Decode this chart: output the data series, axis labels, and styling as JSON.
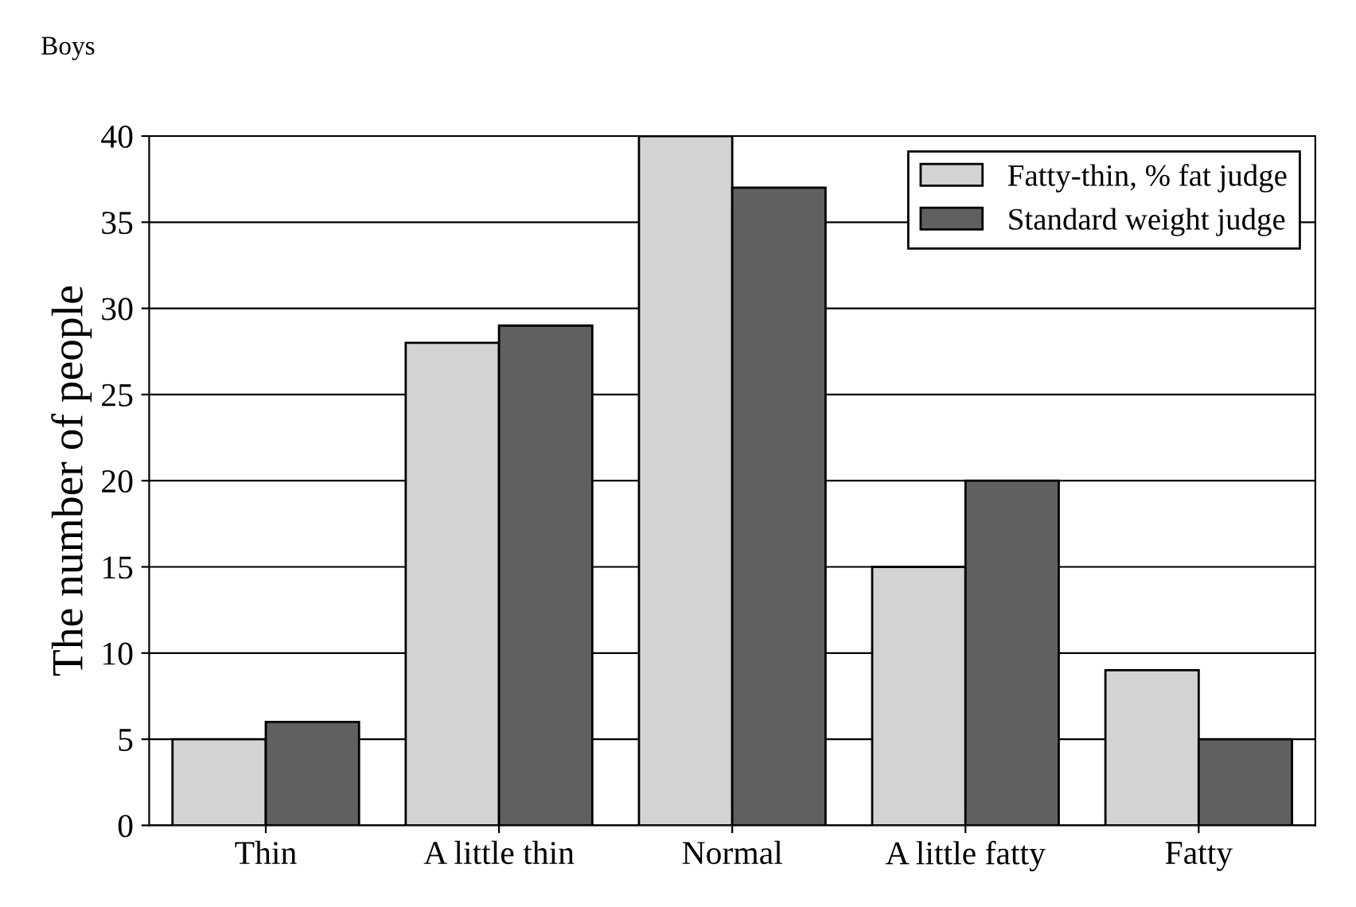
{
  "chart_data": {
    "type": "bar",
    "title": "Boys",
    "ylabel": "The number of people",
    "categories": [
      "Thin",
      "A little thin",
      "Normal",
      "A little fatty",
      "Fatty"
    ],
    "series": [
      {
        "name": "Fatty-thin, % fat judge",
        "color": "#d3d3d3",
        "values": [
          5,
          28,
          40,
          15,
          9
        ]
      },
      {
        "name": "Standard weight judge",
        "color": "#606060",
        "values": [
          6,
          29,
          37,
          20,
          5
        ]
      }
    ],
    "ylim": [
      0,
      40
    ],
    "yticks": [
      0,
      5,
      10,
      15,
      20,
      25,
      30,
      35,
      40
    ],
    "grid": "y",
    "legend": "top right"
  }
}
